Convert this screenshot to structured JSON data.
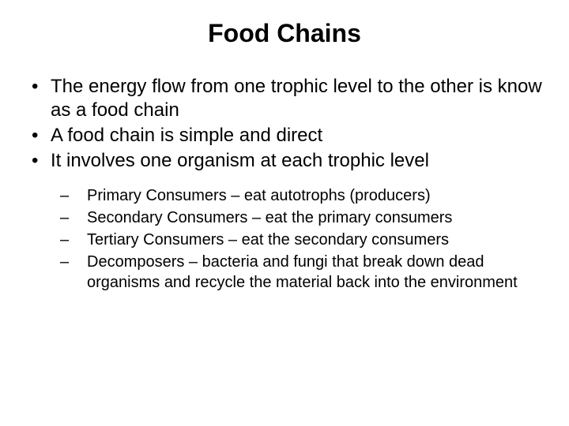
{
  "slide": {
    "title": "Food Chains",
    "title_fontsize": 32,
    "title_fontweight": "bold",
    "body_fontsize": 24,
    "sub_fontsize": 20,
    "text_color": "#000000",
    "background_color": "#ffffff",
    "bullets": [
      {
        "symbol": "•",
        "text": "The energy flow from one trophic level to the other is know as a food chain"
      },
      {
        "symbol": "•",
        "text": "A food chain is simple and direct"
      },
      {
        "symbol": "•",
        "text": "It involves one organism at each trophic level"
      }
    ],
    "sub_bullets": [
      {
        "symbol": "–",
        "text": "Primary Consumers – eat autotrophs (producers)"
      },
      {
        "symbol": "–",
        "text": "Secondary Consumers – eat the primary consumers"
      },
      {
        "symbol": "–",
        "text": "Tertiary Consumers – eat the secondary consumers"
      },
      {
        "symbol": "–",
        "text": "Decomposers – bacteria and fungi that break down dead organisms and recycle the material back into the environment"
      }
    ]
  }
}
